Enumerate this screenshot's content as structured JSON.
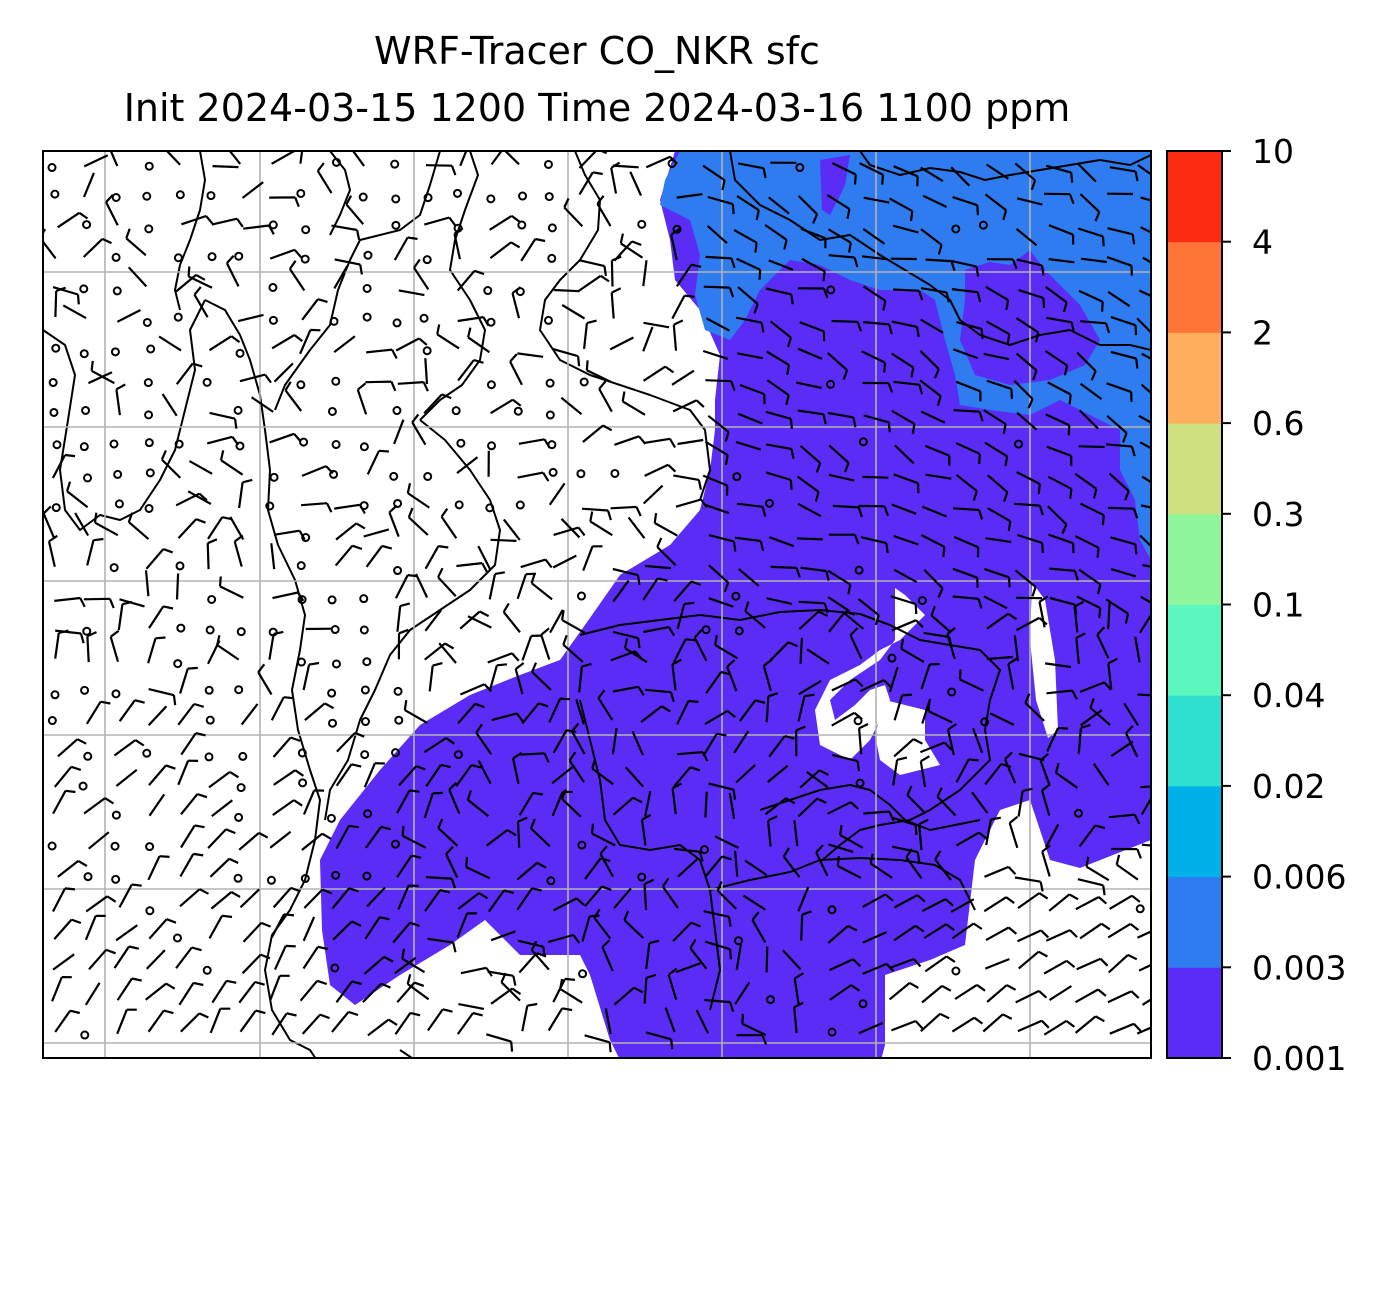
{
  "title": {
    "line1": "WRF-Tracer CO_NKR sfc",
    "line2": "Init 2024-03-15 1200 Time 2024-03-16 1100 ppm"
  },
  "colorbar": {
    "levels": [
      "0.001",
      "0.003",
      "0.006",
      "0.02",
      "0.04",
      "0.1",
      "0.3",
      "0.6",
      "2",
      "4",
      "10"
    ],
    "colors": [
      "#5b2cf5",
      "#2f7bf0",
      "#00b0e8",
      "#2fdfd0",
      "#5cf7bf",
      "#8ef59a",
      "#cfe080",
      "#ffae5e",
      "#ff7438",
      "#ff2a12"
    ]
  },
  "map": {
    "plume_colors": {
      "low": "#5b2cf5",
      "mid": "#2f7bf0"
    },
    "gridline_color": "#b3b3b3",
    "coastline_color": "#000000"
  }
}
